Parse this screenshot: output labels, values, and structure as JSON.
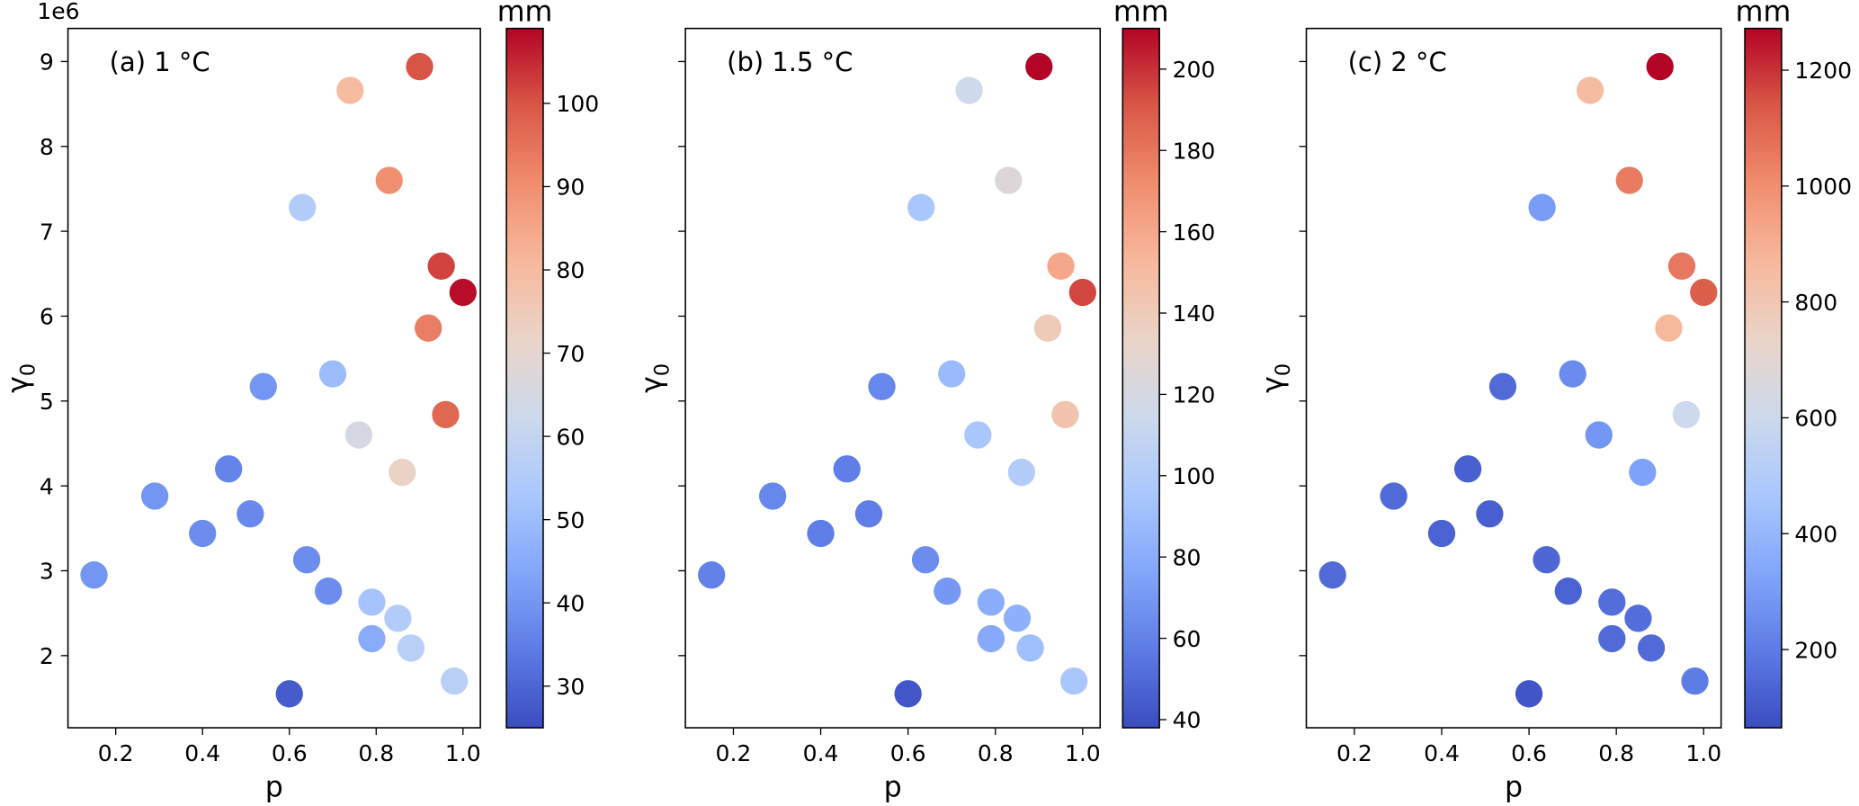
{
  "chart_data": {
    "type": "scatter",
    "x": [
      0.15,
      0.29,
      0.4,
      0.46,
      0.51,
      0.54,
      0.6,
      0.63,
      0.64,
      0.69,
      0.7,
      0.74,
      0.76,
      0.79,
      0.79,
      0.83,
      0.85,
      0.86,
      0.88,
      0.9,
      0.92,
      0.95,
      0.96,
      0.98,
      1.0
    ],
    "y": [
      2.95,
      3.88,
      3.44,
      4.2,
      3.67,
      5.17,
      1.55,
      7.28,
      3.13,
      2.76,
      5.32,
      8.66,
      4.6,
      2.63,
      2.2,
      7.6,
      2.44,
      4.16,
      2.09,
      8.94,
      5.86,
      6.59,
      4.84,
      1.7,
      6.28
    ],
    "y_multiplier_label": "1e6",
    "xlabel": "p",
    "ylabel": "γ",
    "ylabel_subscript": "0",
    "xlim": [
      0.09,
      1.04
    ],
    "ylim": [
      1.15,
      9.39
    ],
    "xticks": [
      "0.2",
      "0.4",
      "0.6",
      "0.8",
      "1.0"
    ],
    "yticks": [
      "2",
      "3",
      "4",
      "5",
      "6",
      "7",
      "8",
      "9"
    ],
    "grid": false,
    "colormap": "coolwarm",
    "colormap_stops": [
      "#3b4cc0",
      "#5d7ce6",
      "#82a6fb",
      "#aac7fd",
      "#cdd9ec",
      "#ead4c8",
      "#f7b89c",
      "#f18d6f",
      "#d95847",
      "#b40426"
    ],
    "panels": [
      {
        "title": "(a) 1 °C",
        "colorbar_label": "mm",
        "color_range": [
          25,
          109
        ],
        "colorbar_ticks": [
          "30",
          "40",
          "50",
          "60",
          "70",
          "80",
          "90",
          "100"
        ],
        "values": [
          40,
          40,
          38,
          36,
          37,
          40,
          28,
          55,
          38,
          38,
          50,
          80,
          65,
          52,
          45,
          90,
          55,
          72,
          57,
          100,
          93,
          102,
          97,
          57,
          108
        ]
      },
      {
        "title": "(b) 1.5 °C",
        "colorbar_label": "mm",
        "color_range": [
          38,
          210
        ],
        "colorbar_ticks": [
          "40",
          "60",
          "80",
          "100",
          "120",
          "140",
          "160",
          "180",
          "200"
        ],
        "values": [
          60,
          62,
          58,
          58,
          58,
          62,
          42,
          95,
          65,
          70,
          88,
          115,
          95,
          80,
          78,
          125,
          82,
          100,
          90,
          210,
          140,
          160,
          145,
          95,
          195
        ]
      },
      {
        "title": "(c) 2 °C",
        "colorbar_label": "mm",
        "color_range": [
          65,
          1272
        ],
        "colorbar_ticks": [
          "200",
          "400",
          "600",
          "800",
          "1000",
          "1200"
        ],
        "values": [
          150,
          150,
          130,
          120,
          120,
          150,
          90,
          300,
          140,
          130,
          250,
          850,
          280,
          160,
          150,
          1050,
          160,
          320,
          150,
          1272,
          870,
          1060,
          600,
          200,
          1120
        ]
      }
    ]
  }
}
